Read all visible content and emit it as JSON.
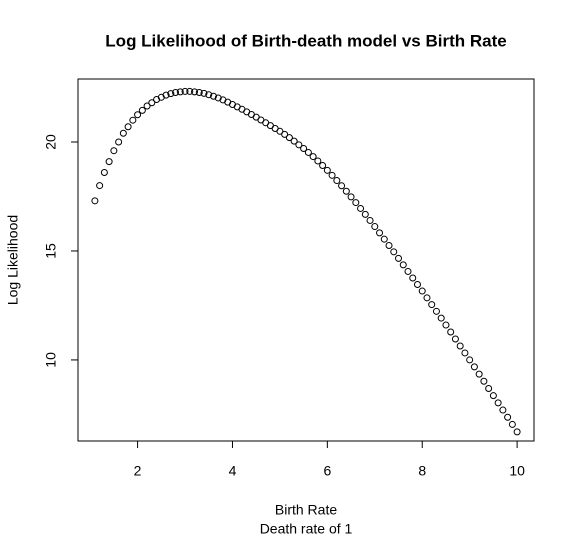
{
  "chart_data": {
    "type": "scatter",
    "title": "Log Likelihood of Birth-death model vs Birth Rate",
    "xlabel": "Birth Rate",
    "subtitle": "Death rate of 1",
    "ylabel": "Log Likelihood",
    "x": [
      1.1,
      1.2,
      1.3,
      1.4,
      1.5,
      1.6,
      1.7,
      1.8,
      1.9,
      2.0,
      2.1,
      2.2,
      2.3,
      2.4,
      2.5,
      2.6,
      2.7,
      2.8,
      2.9,
      3.0,
      3.1,
      3.2,
      3.3,
      3.4,
      3.5,
      3.6,
      3.7,
      3.8,
      3.9,
      4.0,
      4.1,
      4.2,
      4.3,
      4.4,
      4.5,
      4.6,
      4.7,
      4.8,
      4.9,
      5.0,
      5.1,
      5.2,
      5.3,
      5.4,
      5.5,
      5.6,
      5.7,
      5.8,
      5.9,
      6.0,
      6.1,
      6.2,
      6.3,
      6.4,
      6.5,
      6.6,
      6.7,
      6.8,
      6.9,
      7.0,
      7.1,
      7.2,
      7.3,
      7.4,
      7.5,
      7.6,
      7.7,
      7.8,
      7.9,
      8.0,
      8.1,
      8.2,
      8.3,
      8.4,
      8.5,
      8.6,
      8.7,
      8.8,
      8.9,
      9.0,
      9.1,
      9.2,
      9.3,
      9.4,
      9.5,
      9.6,
      9.7,
      9.8,
      9.9,
      10.0
    ],
    "values": [
      17.3,
      18.0,
      18.6,
      19.1,
      19.6,
      20.0,
      20.4,
      20.7,
      21.0,
      21.25,
      21.45,
      21.65,
      21.8,
      21.95,
      22.05,
      22.15,
      22.22,
      22.27,
      22.3,
      22.32,
      22.32,
      22.3,
      22.27,
      22.23,
      22.17,
      22.1,
      22.02,
      21.93,
      21.83,
      21.72,
      21.61,
      21.5,
      21.38,
      21.26,
      21.14,
      21.01,
      20.88,
      20.75,
      20.62,
      20.49,
      20.35,
      20.2,
      20.04,
      19.87,
      19.7,
      19.52,
      19.33,
      19.13,
      18.92,
      18.7,
      18.47,
      18.23,
      17.99,
      17.74,
      17.48,
      17.22,
      16.95,
      16.68,
      16.4,
      16.12,
      15.83,
      15.54,
      15.25,
      14.96,
      14.66,
      14.36,
      14.06,
      13.76,
      13.46,
      13.16,
      12.85,
      12.54,
      12.23,
      11.92,
      11.6,
      11.28,
      10.96,
      10.64,
      10.32,
      10.0,
      9.68,
      9.35,
      9.02,
      8.69,
      8.36,
      8.03,
      7.7,
      7.37,
      7.04,
      6.7
    ],
    "color": "#000000",
    "xlim": [
      0.744,
      10.356
    ],
    "xticks": [
      2,
      4,
      6,
      8,
      10
    ],
    "ylim": [
      6.28,
      22.89
    ],
    "yticks": [
      10,
      15,
      20
    ]
  }
}
